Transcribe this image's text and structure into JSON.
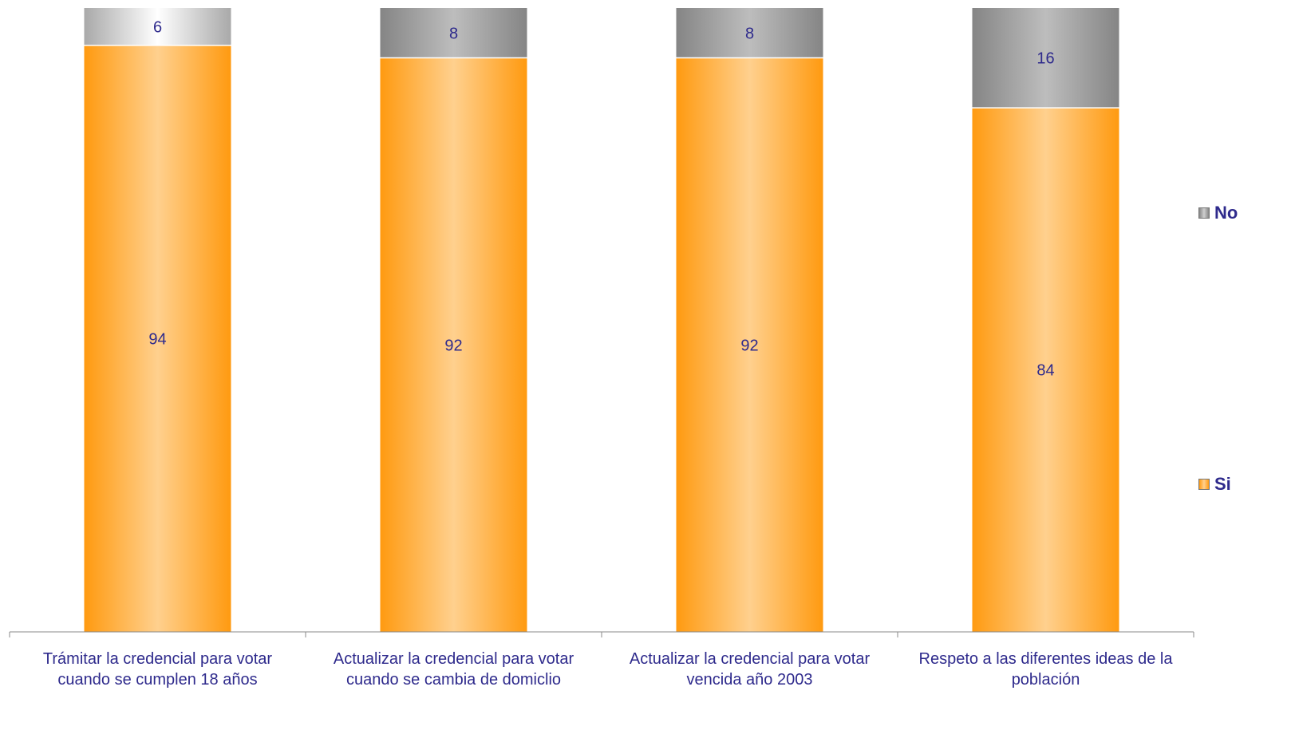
{
  "chart_data": {
    "type": "bar",
    "stacked": true,
    "categories": [
      "Trámitar la credencial para votar cuando se cumplen 18 años",
      "Actualizar la credencial para votar cuando se cambia de domiclio",
      "Actualizar la credencial para votar vencida año 2003",
      "Respeto a las diferentes ideas de la población"
    ],
    "series": [
      {
        "name": "Si",
        "values": [
          94,
          92,
          92,
          84
        ],
        "color": "#ff9a10"
      },
      {
        "name": "No",
        "values": [
          6,
          8,
          8,
          16
        ],
        "color": "#8c8c8c"
      }
    ],
    "ylim": [
      0,
      100
    ],
    "grid": false,
    "legend": "right",
    "label_color": "#2e2a8c"
  },
  "legend": {
    "no_label": "No",
    "si_label": "Si"
  }
}
